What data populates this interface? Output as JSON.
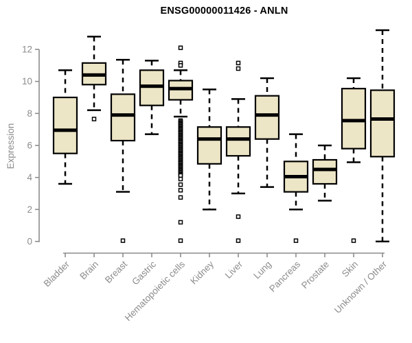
{
  "chart_data": {
    "type": "box",
    "title": "ENSG00000011426 - ANLN",
    "ylabel": "Expression",
    "xlabel": "",
    "ylim": [
      0,
      13.4
    ],
    "yticks": [
      0,
      2,
      4,
      6,
      8,
      10,
      12
    ],
    "grid": false,
    "legend": null,
    "categories": [
      "Bladder",
      "Brain",
      "Breast",
      "Gastric",
      "Hematopoietic cells",
      "Kidney",
      "Liver",
      "Lung",
      "Pancreas",
      "Prostate",
      "Skin",
      "Unknown / Other"
    ],
    "series": [
      {
        "name": "Bladder",
        "low": 3.6,
        "q1": 5.5,
        "median": 6.95,
        "q3": 9.0,
        "high": 10.7,
        "outliers": []
      },
      {
        "name": "Brain",
        "low": 8.2,
        "q1": 9.8,
        "median": 10.4,
        "q3": 11.15,
        "high": 12.8,
        "outliers": [
          7.65
        ]
      },
      {
        "name": "Breast",
        "low": 3.1,
        "q1": 6.3,
        "median": 7.9,
        "q3": 9.2,
        "high": 11.35,
        "outliers": [
          0.05
        ]
      },
      {
        "name": "Gastric",
        "low": 6.7,
        "q1": 8.5,
        "median": 9.7,
        "q3": 10.7,
        "high": 11.3,
        "outliers": []
      },
      {
        "name": "Hematopoietic cells",
        "low": 7.8,
        "q1": 8.85,
        "median": 9.55,
        "q3": 10.05,
        "high": 10.7,
        "outliers": [
          12.1,
          11.15,
          11.0,
          7.55,
          7.48,
          7.41,
          7.34,
          7.27,
          7.2,
          7.13,
          7.06,
          6.99,
          6.92,
          6.85,
          6.78,
          6.71,
          6.64,
          6.57,
          6.5,
          6.43,
          6.36,
          6.29,
          6.22,
          6.15,
          6.08,
          6.01,
          5.94,
          5.87,
          5.8,
          5.73,
          5.66,
          5.59,
          5.52,
          5.45,
          5.38,
          5.31,
          5.24,
          5.17,
          5.1,
          5.03,
          4.96,
          4.89,
          4.82,
          4.75,
          4.68,
          4.61,
          4.54,
          4.47,
          4.4,
          4.33,
          4.26,
          4.19,
          4.12,
          3.9,
          3.55,
          3.2,
          2.75,
          1.2,
          0.05
        ]
      },
      {
        "name": "Kidney",
        "low": 2.0,
        "q1": 4.85,
        "median": 6.4,
        "q3": 7.15,
        "high": 9.5,
        "outliers": []
      },
      {
        "name": "Liver",
        "low": 3.0,
        "q1": 5.35,
        "median": 6.4,
        "q3": 7.15,
        "high": 8.9,
        "outliers": [
          11.15,
          10.8,
          1.55,
          0.05
        ]
      },
      {
        "name": "Lung",
        "low": 3.4,
        "q1": 6.4,
        "median": 7.9,
        "q3": 9.1,
        "high": 10.2,
        "outliers": []
      },
      {
        "name": "Pancreas",
        "low": 2.0,
        "q1": 3.1,
        "median": 4.05,
        "q3": 5.0,
        "high": 6.7,
        "outliers": [
          0.05
        ]
      },
      {
        "name": "Prostate",
        "low": 2.55,
        "q1": 3.6,
        "median": 4.5,
        "q3": 5.1,
        "high": 6.0,
        "outliers": []
      },
      {
        "name": "Skin",
        "low": 4.95,
        "q1": 5.8,
        "median": 7.55,
        "q3": 9.55,
        "high": 10.2,
        "outliers": [
          0.05
        ]
      },
      {
        "name": "Unknown / Other",
        "low": 0.0,
        "q1": 5.3,
        "median": 7.65,
        "q3": 9.45,
        "high": 13.2,
        "outliers": []
      }
    ],
    "colors": {
      "box_fill": "#ECE5C6",
      "box_stroke": "#000000",
      "median": "#000000",
      "whisker": "#000000",
      "outlier_stroke": "#000000",
      "outlier_fill": "#FFFFFF",
      "axis": "#8C8C8C",
      "tick_label": "#8C8C8C",
      "title": "#000000",
      "background": "#FFFFFF"
    }
  }
}
